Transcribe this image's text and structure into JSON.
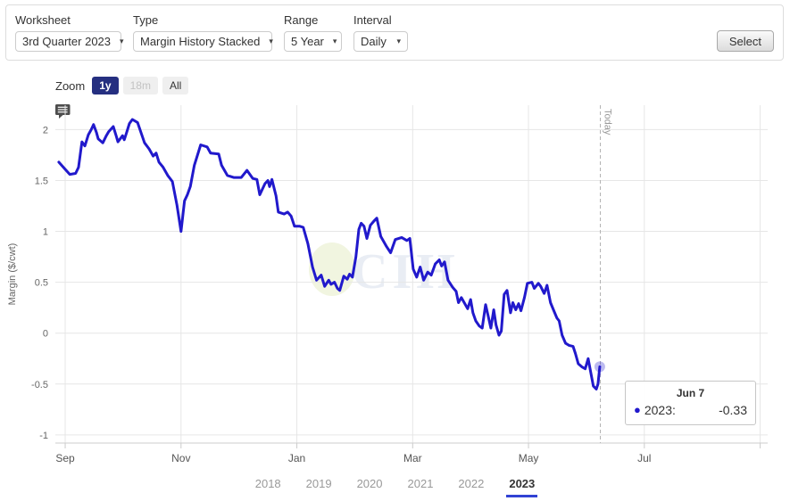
{
  "toolbar": {
    "fields": [
      {
        "label": "Worksheet",
        "value": "3rd Quarter 2023"
      },
      {
        "label": "Type",
        "value": "Margin History Stacked"
      },
      {
        "label": "Range",
        "value": "5 Year"
      },
      {
        "label": "Interval",
        "value": "Daily"
      }
    ],
    "select_label": "Select"
  },
  "zoom_controls": {
    "label": "Zoom",
    "buttons": [
      {
        "label": "1y",
        "state": "active"
      },
      {
        "label": "18m",
        "state": "disabled"
      },
      {
        "label": "All",
        "state": "default"
      }
    ]
  },
  "colors": {
    "series_line": "#2119cc",
    "active_zoom_button": "#252f80",
    "year_underline": "#3142d4",
    "gridline": "#e6e6e6"
  },
  "chart_data": {
    "type": "line",
    "title": "",
    "ylabel": "Margin ($/cwt)",
    "ylim": [
      -1.08,
      2.24
    ],
    "yticks": [
      2,
      1.5,
      1,
      0.5,
      0,
      -0.5,
      -1
    ],
    "xlim_months": [
      -0.17,
      12.13
    ],
    "x_unit": "months after Sep 1",
    "xticks": [
      {
        "m": 0,
        "label": "Sep"
      },
      {
        "m": 2,
        "label": "Nov"
      },
      {
        "m": 4,
        "label": "Jan"
      },
      {
        "m": 6,
        "label": "Mar"
      },
      {
        "m": 8,
        "label": "May"
      },
      {
        "m": 10,
        "label": "Jul"
      },
      {
        "m": 12,
        "label": ""
      }
    ],
    "grid": true,
    "legend_position": "none",
    "today": {
      "m": 9.24,
      "label": "Today"
    },
    "watermark": "CIH",
    "series": [
      {
        "name": "2023",
        "color": "#2119cc",
        "points": [
          [
            -0.11,
            1.68
          ],
          [
            0,
            1.61
          ],
          [
            0.08,
            1.56
          ],
          [
            0.18,
            1.57
          ],
          [
            0.23,
            1.63
          ],
          [
            0.29,
            1.88
          ],
          [
            0.34,
            1.84
          ],
          [
            0.4,
            1.95
          ],
          [
            0.45,
            2.0
          ],
          [
            0.49,
            2.05
          ],
          [
            0.54,
            1.97
          ],
          [
            0.57,
            1.91
          ],
          [
            0.65,
            1.87
          ],
          [
            0.71,
            1.94
          ],
          [
            0.75,
            1.98
          ],
          [
            0.83,
            2.03
          ],
          [
            0.88,
            1.94
          ],
          [
            0.91,
            1.88
          ],
          [
            0.99,
            1.94
          ],
          [
            1.02,
            1.9
          ],
          [
            1.06,
            1.97
          ],
          [
            1.11,
            2.06
          ],
          [
            1.16,
            2.1
          ],
          [
            1.25,
            2.07
          ],
          [
            1.31,
            1.97
          ],
          [
            1.37,
            1.87
          ],
          [
            1.45,
            1.81
          ],
          [
            1.52,
            1.74
          ],
          [
            1.57,
            1.77
          ],
          [
            1.62,
            1.68
          ],
          [
            1.69,
            1.63
          ],
          [
            1.77,
            1.55
          ],
          [
            1.85,
            1.49
          ],
          [
            1.93,
            1.26
          ],
          [
            2.0,
            1.0
          ],
          [
            2.06,
            1.3
          ],
          [
            2.11,
            1.36
          ],
          [
            2.16,
            1.44
          ],
          [
            2.23,
            1.65
          ],
          [
            2.34,
            1.85
          ],
          [
            2.45,
            1.83
          ],
          [
            2.51,
            1.77
          ],
          [
            2.65,
            1.76
          ],
          [
            2.7,
            1.65
          ],
          [
            2.8,
            1.55
          ],
          [
            2.91,
            1.53
          ],
          [
            3.04,
            1.53
          ],
          [
            3.14,
            1.6
          ],
          [
            3.24,
            1.52
          ],
          [
            3.31,
            1.51
          ],
          [
            3.36,
            1.36
          ],
          [
            3.45,
            1.47
          ],
          [
            3.5,
            1.5
          ],
          [
            3.53,
            1.44
          ],
          [
            3.57,
            1.51
          ],
          [
            3.64,
            1.35
          ],
          [
            3.68,
            1.19
          ],
          [
            3.78,
            1.17
          ],
          [
            3.84,
            1.19
          ],
          [
            3.9,
            1.15
          ],
          [
            3.96,
            1.05
          ],
          [
            4.05,
            1.05
          ],
          [
            4.11,
            1.04
          ],
          [
            4.19,
            0.88
          ],
          [
            4.27,
            0.65
          ],
          [
            4.34,
            0.52
          ],
          [
            4.42,
            0.57
          ],
          [
            4.48,
            0.46
          ],
          [
            4.55,
            0.52
          ],
          [
            4.59,
            0.48
          ],
          [
            4.65,
            0.5
          ],
          [
            4.7,
            0.44
          ],
          [
            4.74,
            0.42
          ],
          [
            4.81,
            0.56
          ],
          [
            4.87,
            0.53
          ],
          [
            4.91,
            0.58
          ],
          [
            4.96,
            0.55
          ],
          [
            5.02,
            0.75
          ],
          [
            5.07,
            1.02
          ],
          [
            5.11,
            1.08
          ],
          [
            5.16,
            1.05
          ],
          [
            5.21,
            0.93
          ],
          [
            5.27,
            1.06
          ],
          [
            5.33,
            1.1
          ],
          [
            5.38,
            1.13
          ],
          [
            5.45,
            0.95
          ],
          [
            5.55,
            0.85
          ],
          [
            5.62,
            0.79
          ],
          [
            5.7,
            0.92
          ],
          [
            5.81,
            0.94
          ],
          [
            5.9,
            0.91
          ],
          [
            5.95,
            0.93
          ],
          [
            6.01,
            0.63
          ],
          [
            6.07,
            0.55
          ],
          [
            6.13,
            0.65
          ],
          [
            6.19,
            0.52
          ],
          [
            6.26,
            0.6
          ],
          [
            6.32,
            0.57
          ],
          [
            6.39,
            0.68
          ],
          [
            6.46,
            0.72
          ],
          [
            6.5,
            0.66
          ],
          [
            6.55,
            0.7
          ],
          [
            6.61,
            0.52
          ],
          [
            6.69,
            0.45
          ],
          [
            6.75,
            0.41
          ],
          [
            6.79,
            0.3
          ],
          [
            6.84,
            0.35
          ],
          [
            6.9,
            0.29
          ],
          [
            6.95,
            0.24
          ],
          [
            7.0,
            0.33
          ],
          [
            7.04,
            0.2
          ],
          [
            7.09,
            0.12
          ],
          [
            7.15,
            0.07
          ],
          [
            7.2,
            0.05
          ],
          [
            7.26,
            0.28
          ],
          [
            7.3,
            0.18
          ],
          [
            7.35,
            0.05
          ],
          [
            7.4,
            0.23
          ],
          [
            7.44,
            0.08
          ],
          [
            7.49,
            -0.02
          ],
          [
            7.53,
            0.02
          ],
          [
            7.58,
            0.38
          ],
          [
            7.63,
            0.42
          ],
          [
            7.69,
            0.2
          ],
          [
            7.73,
            0.3
          ],
          [
            7.78,
            0.23
          ],
          [
            7.83,
            0.29
          ],
          [
            7.87,
            0.22
          ],
          [
            7.93,
            0.35
          ],
          [
            7.98,
            0.49
          ],
          [
            8.06,
            0.5
          ],
          [
            8.1,
            0.44
          ],
          [
            8.17,
            0.49
          ],
          [
            8.21,
            0.46
          ],
          [
            8.27,
            0.39
          ],
          [
            8.32,
            0.47
          ],
          [
            8.38,
            0.3
          ],
          [
            8.43,
            0.23
          ],
          [
            8.49,
            0.15
          ],
          [
            8.53,
            0.12
          ],
          [
            8.58,
            -0.02
          ],
          [
            8.64,
            -0.1
          ],
          [
            8.7,
            -0.12
          ],
          [
            8.77,
            -0.13
          ],
          [
            8.81,
            -0.2
          ],
          [
            8.86,
            -0.3
          ],
          [
            8.92,
            -0.33
          ],
          [
            8.98,
            -0.35
          ],
          [
            9.03,
            -0.25
          ],
          [
            9.08,
            -0.4
          ],
          [
            9.12,
            -0.52
          ],
          [
            9.17,
            -0.55
          ],
          [
            9.2,
            -0.5
          ],
          [
            9.23,
            -0.33
          ]
        ]
      }
    ],
    "hovered_point": {
      "date": "Jun 7",
      "series": "2023",
      "value": -0.33
    }
  },
  "tooltip": {
    "header": "Jun 7",
    "series_label": "2023:",
    "value": "-0.33"
  },
  "year_nav": {
    "items": [
      "2018",
      "2019",
      "2020",
      "2021",
      "2022",
      "2023"
    ],
    "active": "2023"
  }
}
